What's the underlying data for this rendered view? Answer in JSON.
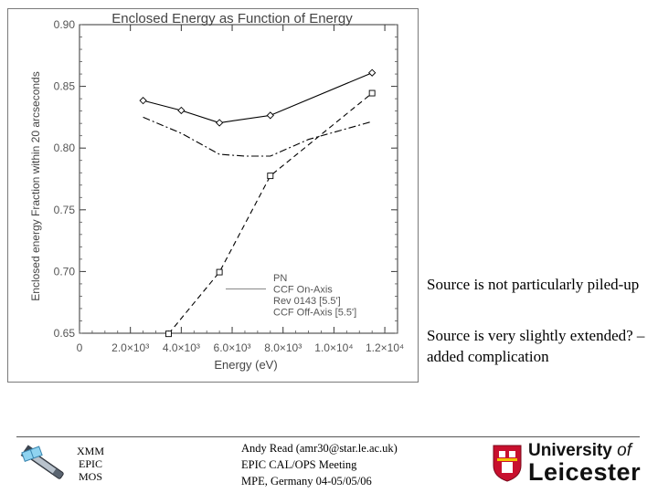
{
  "chart_data": {
    "type": "line",
    "title": "Enclosed Energy as Function of Energy",
    "xlabel": "Energy (eV)",
    "ylabel": "Enclosed energy Fraction within 20 arcseconds",
    "xlim": [
      0,
      12500
    ],
    "ylim": [
      0.65,
      0.9
    ],
    "x_ticks": [
      0,
      2000,
      4000,
      6000,
      8000,
      10000,
      12000
    ],
    "x_tick_labels": [
      "0",
      "2.0×10³",
      "4.0×10³",
      "6.0×10³",
      "8.0×10³",
      "1.0×10⁴",
      "1.2×10⁴"
    ],
    "y_ticks": [
      0.65,
      0.7,
      0.75,
      0.8,
      0.85,
      0.9
    ],
    "y_tick_labels": [
      "0.65",
      "0.70",
      "0.75",
      "0.80",
      "0.85",
      "0.90"
    ],
    "legend_position": "bottom-right",
    "series": [
      {
        "name": "PN",
        "style": "solid",
        "marker": "diamond",
        "color": "#000000",
        "x": [
          2500,
          4000,
          5500,
          7500,
          11500
        ],
        "y": [
          0.8385,
          0.8305,
          0.8205,
          0.8265,
          0.861
        ]
      },
      {
        "name": "CCF On-Axis",
        "style": "solid-gray",
        "marker": "none",
        "color": "#888888",
        "x": [],
        "y": []
      },
      {
        "name": "Rev 0143 [5.5']",
        "style": "dashed",
        "marker": "square",
        "color": "#000000",
        "x": [
          3500,
          5500,
          7500,
          11500
        ],
        "y": [
          0.6495,
          0.6995,
          0.7775,
          0.8445
        ]
      },
      {
        "name": "CCF Off-Axis [5.5']",
        "style": "dashdot",
        "marker": "none",
        "color": "#000000",
        "x": [
          2500,
          4000,
          5500,
          6500,
          7500,
          9000,
          11500
        ],
        "y": [
          0.825,
          0.812,
          0.795,
          0.7935,
          0.7935,
          0.807,
          0.8215
        ]
      }
    ]
  },
  "notes": {
    "note1": "Source is not particularly piled-up",
    "note2": "Source is very slightly extended? – added complication"
  },
  "footer": {
    "mission": [
      "XMM",
      "EPIC",
      "MOS"
    ],
    "presenter": [
      "Andy Read (amr30@star.le.ac.uk)",
      "EPIC CAL/OPS Meeting",
      "MPE, Germany 04-05/05/06"
    ],
    "university_line1": "University",
    "university_of": "of",
    "university_line2": "Leicester"
  }
}
